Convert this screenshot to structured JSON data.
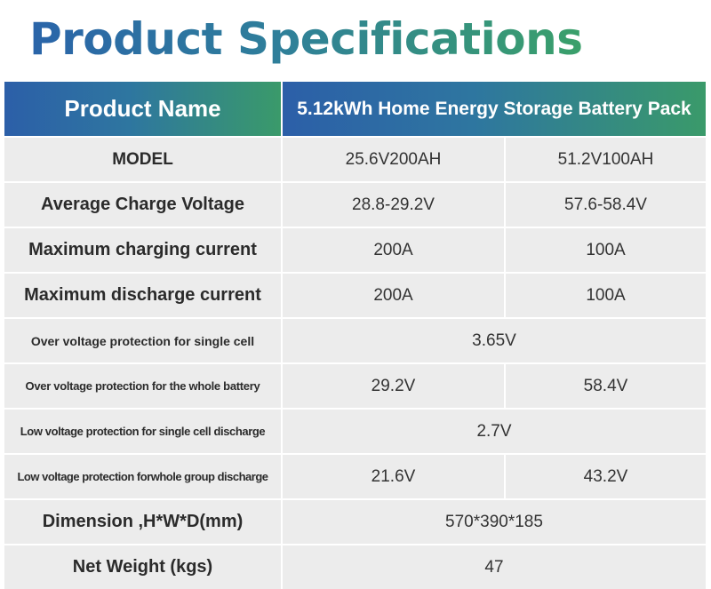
{
  "page_title": "Product Specifications",
  "header": {
    "label": "Product Name",
    "value": "5.12kWh Home Energy Storage Battery Pack"
  },
  "rows": [
    {
      "label": "MODEL",
      "v1": "25.6V200AH",
      "v2": "51.2V100AH"
    },
    {
      "label": "Average Charge Voltage",
      "v1": "28.8-29.2V",
      "v2": "57.6-58.4V"
    },
    {
      "label": "Maximum charging current",
      "v1": "200A",
      "v2": "100A"
    },
    {
      "label": "Maximum discharge current",
      "v1": "200A",
      "v2": "100A"
    },
    {
      "label": "Over voltage protection for single cell",
      "merged": "3.65V"
    },
    {
      "label": "Over voltage protection for the whole battery",
      "v1": "29.2V",
      "v2": "58.4V"
    },
    {
      "label": "Low voltage protection for single cell discharge",
      "merged": "2.7V"
    },
    {
      "label": "Low voltage protection forwhole group discharge",
      "v1": "21.6V",
      "v2": "43.2V"
    },
    {
      "label": "Dimension ,H*W*D(mm)",
      "merged": "570*390*185"
    },
    {
      "label": "Net Weight (kgs)",
      "merged": "47"
    }
  ],
  "colors": {
    "title_gradient_start": "#2a64a9",
    "title_gradient_end": "#3aa06a",
    "header_gradient_start": "#2c5fa8",
    "header_gradient_end": "#3a9a6a",
    "row_background": "#ececec"
  }
}
